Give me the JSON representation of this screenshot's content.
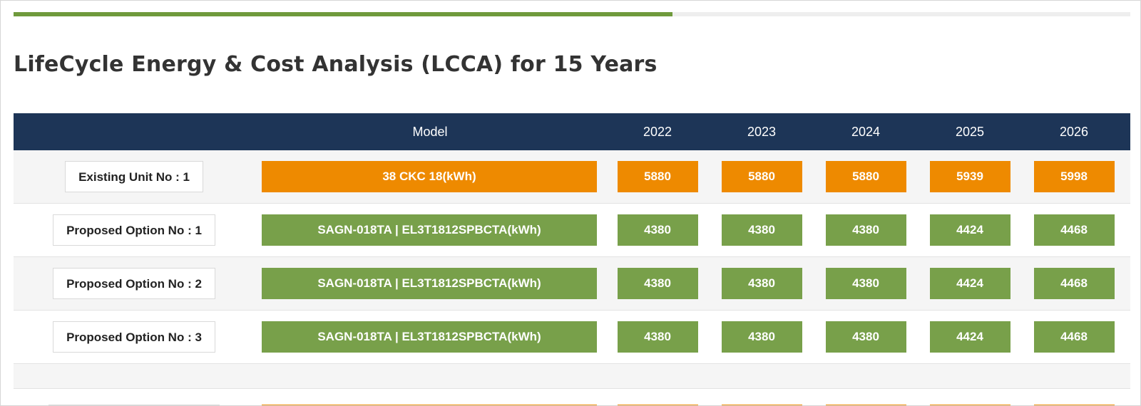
{
  "progress": {
    "fraction": 0.59,
    "fill_color": "#6f9a3c"
  },
  "title": "LifeCycle Energy & Cost Analysis (LCCA) for 15 Years",
  "table": {
    "header": {
      "model": "Model",
      "years": [
        "2022",
        "2023",
        "2024",
        "2025",
        "2026"
      ]
    },
    "rows": [
      {
        "label": "Existing Unit No : 1",
        "model": "38 CKC 18(kWh)",
        "values": [
          "5880",
          "5880",
          "5880",
          "5939",
          "5998"
        ],
        "color": "orange"
      },
      {
        "label": "Proposed Option No : 1",
        "model": "SAGN-018TA | EL3T1812SPBCTA(kWh)",
        "values": [
          "4380",
          "4380",
          "4380",
          "4424",
          "4468"
        ],
        "color": "green"
      },
      {
        "label": "Proposed Option No : 2",
        "model": "SAGN-018TA | EL3T1812SPBCTA(kWh)",
        "values": [
          "4380",
          "4380",
          "4380",
          "4424",
          "4468"
        ],
        "color": "green"
      },
      {
        "label": "Proposed Option No : 3",
        "model": "SAGN-018TA | EL3T1812SPBCTA(kWh)",
        "values": [
          "4380",
          "4380",
          "4380",
          "4424",
          "4468"
        ],
        "color": "green"
      }
    ]
  },
  "colors": {
    "header_bg": "#1d3557",
    "orange": "#ee8a00",
    "green": "#78a04a"
  }
}
